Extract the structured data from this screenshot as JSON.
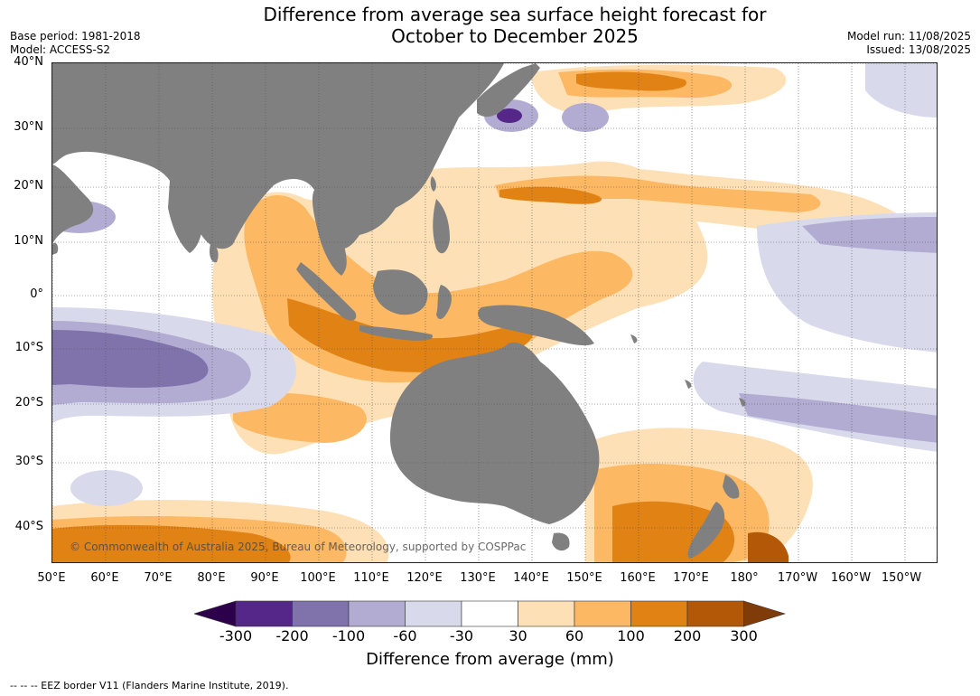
{
  "header": {
    "title_line1": "Difference from average sea surface height forecast for",
    "title_line2": "October to December 2025",
    "base_period": "Base period: 1981-2018",
    "model": "Model: ACCESS-S2",
    "model_run": "Model run: 11/08/2025",
    "issued": "Issued: 13/08/2025"
  },
  "map": {
    "lat_labels": [
      "40°N",
      "30°N",
      "20°N",
      "10°N",
      "0°",
      "10°S",
      "20°S",
      "30°S",
      "40°S"
    ],
    "lon_labels": [
      "50°E",
      "60°E",
      "70°E",
      "80°E",
      "90°E",
      "100°E",
      "110°E",
      "120°E",
      "130°E",
      "140°E",
      "150°E",
      "160°E",
      "170°E",
      "180°",
      "170°W",
      "160°W",
      "150°W"
    ],
    "land_color": "#808080",
    "copyright": "© Commonwealth of Australia 2025, Bureau of Meteorology, supported by COSPPac"
  },
  "colorbar": {
    "ticks": [
      "-300",
      "-200",
      "-100",
      "-60",
      "-30",
      "30",
      "60",
      "100",
      "200",
      "300"
    ],
    "colors": [
      "#2d004b",
      "#542788",
      "#8073ac",
      "#b2abd2",
      "#d8daeb",
      "#ffffff",
      "#fee0b6",
      "#fdb863",
      "#e08214",
      "#b35806",
      "#7f3b08"
    ],
    "label": "Difference from average (mm)"
  },
  "footnote": "--  --  -- EEZ border V11 (Flanders Marine Institute, 2019)."
}
